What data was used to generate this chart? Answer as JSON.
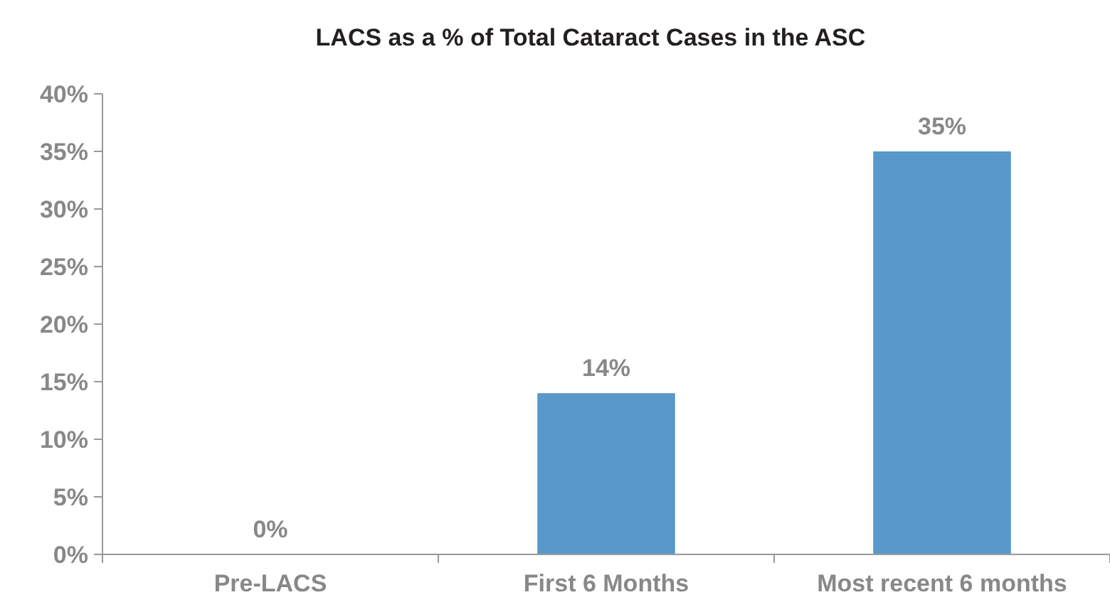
{
  "chart_data": {
    "type": "bar",
    "title": "LACS as a % of Total Cataract Cases in the ASC",
    "categories": [
      "Pre-LACS",
      "First 6 Months",
      "Most recent 6 months"
    ],
    "values": [
      0,
      14,
      35
    ],
    "color": "#5898ca",
    "value_labels": [
      "0%",
      "14%",
      "35%"
    ],
    "ylim": [
      0,
      40
    ],
    "yticks": [
      {
        "value": 0,
        "label": "0%"
      },
      {
        "value": 5,
        "label": "5%"
      },
      {
        "value": 10,
        "label": "10%"
      },
      {
        "value": 15,
        "label": "15%"
      },
      {
        "value": 20,
        "label": "20%"
      },
      {
        "value": 25,
        "label": "25%"
      },
      {
        "value": 30,
        "label": "30%"
      },
      {
        "value": 35,
        "label": "35%"
      },
      {
        "value": 40,
        "label": "40%"
      }
    ],
    "grid": false
  }
}
